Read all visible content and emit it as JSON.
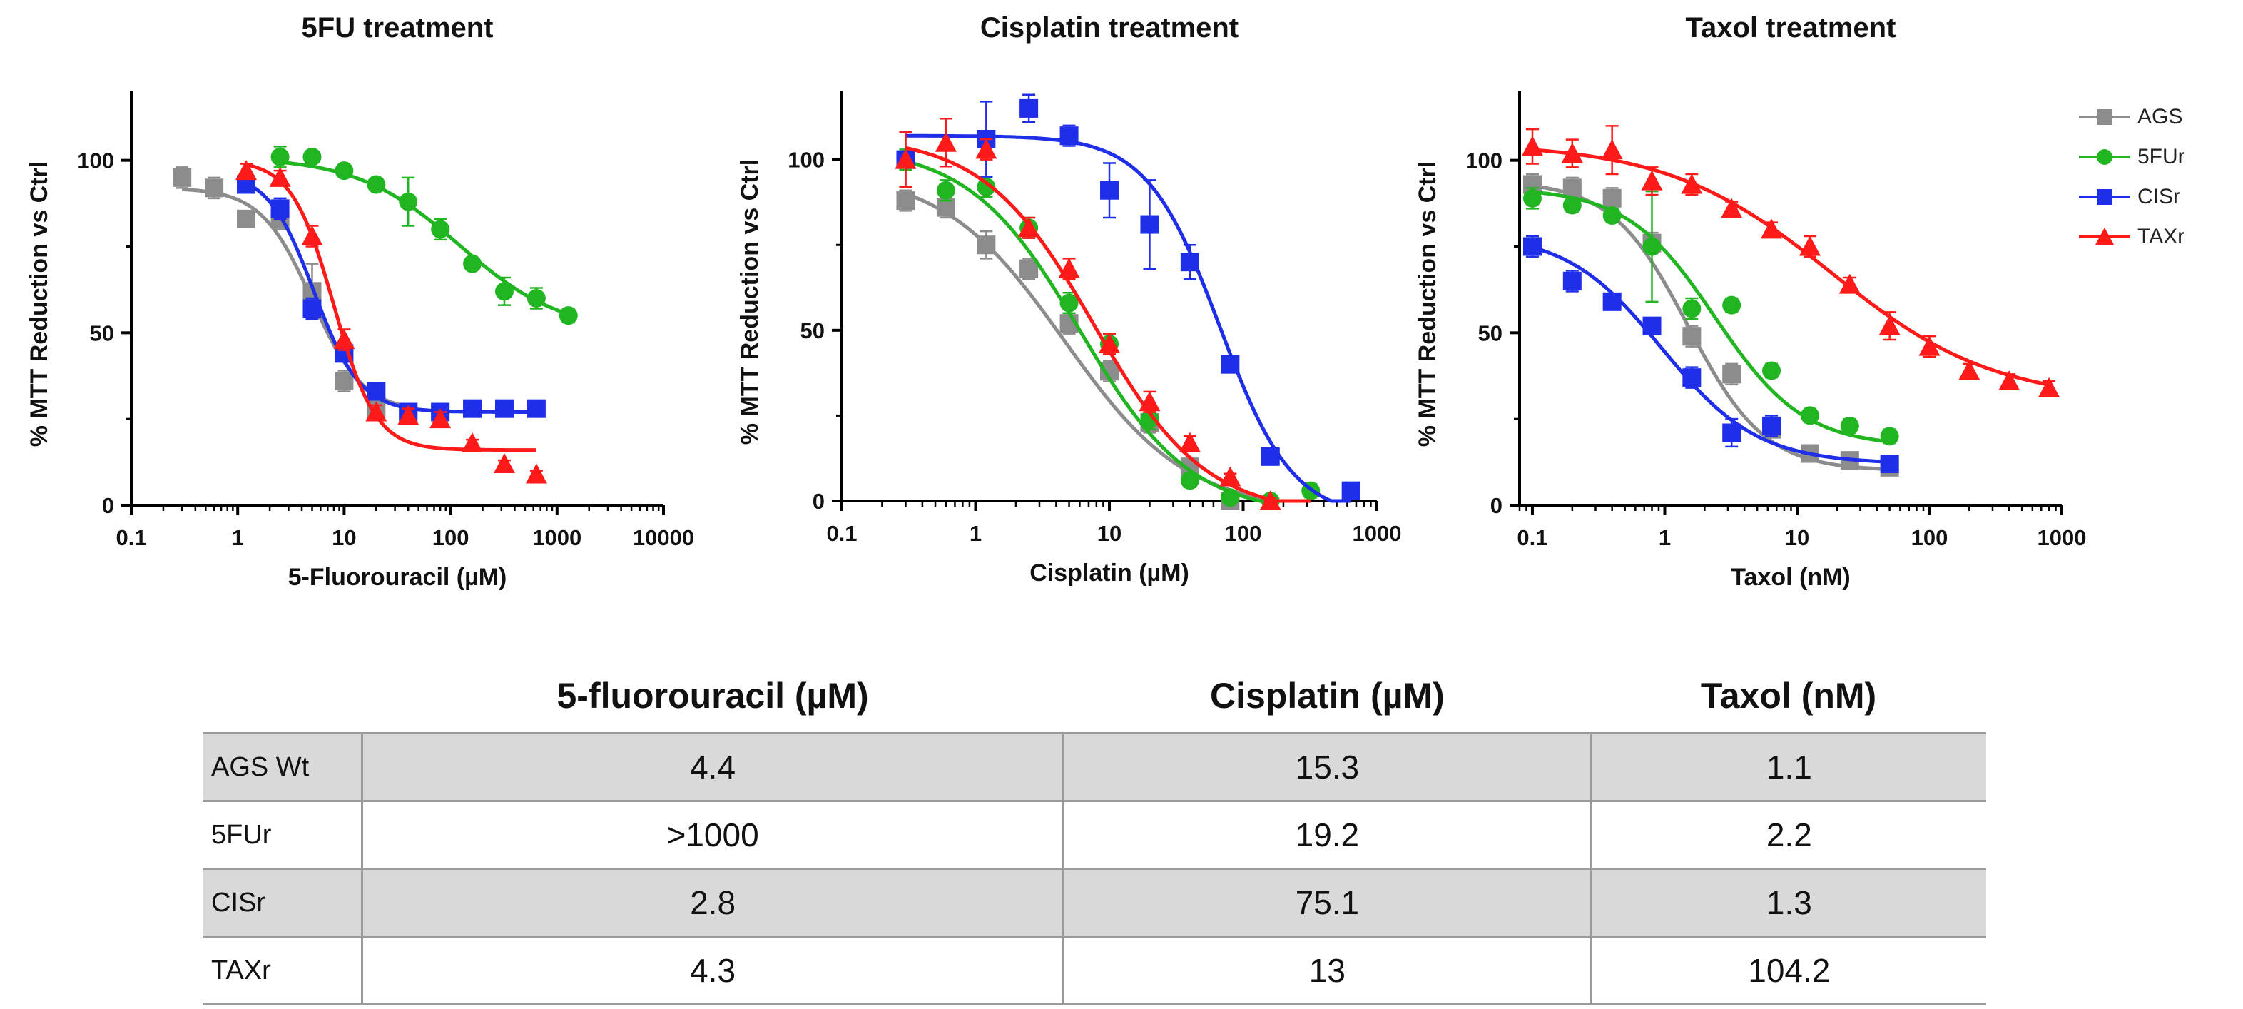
{
  "colors": {
    "AGS": "#8c8c8c",
    "5FUr": "#22b522",
    "CISr": "#1f2ee8",
    "TAXr": "#ff1a1a"
  },
  "chart_data": [
    {
      "type": "line",
      "title": "5FU treatment",
      "xlabel": "5-Fluorouracil (µM)",
      "ylabel": "% MTT Reduction vs Ctrl",
      "xscale": "log",
      "xlim": [
        0.1,
        10000
      ],
      "ylim": [
        0,
        120
      ],
      "xticks": [
        "0.1",
        "1",
        "10",
        "100",
        "1000",
        "10000"
      ],
      "yticks": [
        "0",
        "50",
        "100"
      ],
      "series": [
        {
          "name": "AGS",
          "marker": "square",
          "x": [
            0.3,
            0.6,
            1.2,
            2.5,
            5,
            10,
            20,
            40
          ],
          "y": [
            95,
            92,
            83,
            83,
            62,
            36,
            28,
            27
          ],
          "err": [
            3,
            3,
            2,
            3,
            8,
            3,
            2,
            2
          ],
          "fit": {
            "top": 92,
            "bottom": 27,
            "ec50": 5.0,
            "hill": 1.8,
            "xmin": 0.3,
            "xmax": 40
          }
        },
        {
          "name": "5FUr",
          "marker": "circle",
          "x": [
            2.5,
            5,
            10,
            20,
            40,
            80,
            160,
            320,
            640,
            1280
          ],
          "y": [
            101,
            101,
            97,
            93,
            88,
            80,
            70,
            62,
            60,
            55
          ],
          "err": [
            3,
            1,
            1,
            1,
            7,
            3,
            1,
            4,
            3,
            2
          ],
          "fit": {
            "top": 101,
            "bottom": 50,
            "ec50": 120,
            "hill": 0.9,
            "xmin": 2.5,
            "xmax": 1280
          }
        },
        {
          "name": "CISr",
          "marker": "square",
          "x": [
            1.2,
            2.5,
            5,
            10,
            20,
            40,
            80,
            160,
            320,
            640
          ],
          "y": [
            93,
            86,
            57,
            44,
            33,
            27,
            27,
            28,
            28,
            28
          ],
          "err": [
            2,
            3,
            3,
            2,
            2,
            2,
            2,
            2,
            1,
            1
          ],
          "fit": {
            "top": 97,
            "bottom": 27,
            "ec50": 5.2,
            "hill": 2.0,
            "xmin": 1.2,
            "xmax": 640
          }
        },
        {
          "name": "TAXr",
          "marker": "triangle",
          "x": [
            1.2,
            2.5,
            5,
            10,
            20,
            40,
            80,
            160,
            320,
            640
          ],
          "y": [
            97,
            95,
            78,
            48,
            27,
            26,
            25,
            18,
            12,
            9
          ],
          "err": [
            2,
            2,
            3,
            3,
            2,
            2,
            2,
            1,
            1,
            1
          ],
          "fit": {
            "top": 100,
            "bottom": 16,
            "ec50": 8.0,
            "hill": 2.2,
            "xmin": 1.2,
            "xmax": 640
          }
        }
      ]
    },
    {
      "type": "line",
      "title": "Cisplatin treatment",
      "xlabel": "Cisplatin (µM)",
      "ylabel": "% MTT Reduction vs Ctrl",
      "xscale": "log",
      "xlim": [
        0.1,
        1000
      ],
      "ylim": [
        0,
        120
      ],
      "xticks": [
        "0.1",
        "1",
        "10",
        "100",
        "1000"
      ],
      "yticks": [
        "0",
        "50",
        "100"
      ],
      "series": [
        {
          "name": "AGS",
          "marker": "square",
          "x": [
            0.3,
            0.6,
            1.2,
            2.5,
            5,
            10,
            20,
            40,
            80
          ],
          "y": [
            88,
            86,
            75,
            68,
            52,
            38,
            23,
            10,
            0
          ],
          "err": [
            3,
            3,
            4,
            3,
            3,
            3,
            3,
            2,
            1
          ],
          "fit": {
            "top": 97,
            "bottom": -3,
            "ec50": 4.6,
            "hill": 0.95,
            "xmin": 0.3,
            "xmax": 160
          }
        },
        {
          "name": "5FUr",
          "marker": "circle",
          "x": [
            0.3,
            0.6,
            1.2,
            2.5,
            5,
            10,
            20,
            40,
            80,
            160,
            320
          ],
          "y": [
            100,
            91,
            92,
            80,
            58,
            46,
            24,
            6,
            1,
            0,
            3
          ],
          "err": [
            3,
            3,
            3,
            3,
            3,
            3,
            3,
            2,
            1,
            1,
            2
          ],
          "fit": {
            "top": 104,
            "bottom": -4,
            "ec50": 6.0,
            "hill": 1.05,
            "xmin": 0.3,
            "xmax": 320
          }
        },
        {
          "name": "CISr",
          "marker": "square",
          "x": [
            0.3,
            1.2,
            2.5,
            5,
            10,
            20,
            40,
            80,
            160,
            640
          ],
          "y": [
            100,
            106,
            115,
            107,
            91,
            81,
            70,
            40,
            13,
            3
          ],
          "err": [
            8,
            11,
            4,
            3,
            8,
            13,
            5,
            2,
            2,
            1
          ],
          "fit": {
            "top": 107,
            "bottom": -5,
            "ec50": 67,
            "hill": 1.6,
            "xmin": 0.3,
            "xmax": 640
          }
        },
        {
          "name": "TAXr",
          "marker": "triangle",
          "x": [
            0.3,
            0.6,
            1.2,
            2.5,
            5,
            10,
            20,
            40,
            80,
            160
          ],
          "y": [
            100,
            105,
            103,
            80,
            68,
            46,
            29,
            17,
            7,
            0
          ],
          "err": [
            8,
            7,
            3,
            3,
            3,
            3,
            3,
            2,
            1,
            1
          ],
          "fit": {
            "top": 107,
            "bottom": -4,
            "ec50": 7.7,
            "hill": 1.05,
            "xmin": 0.3,
            "xmax": 320
          }
        }
      ]
    },
    {
      "type": "line",
      "title": "Taxol treatment",
      "xlabel": "Taxol (nM)",
      "ylabel": "% MTT Reduction vs Ctrl",
      "xscale": "log",
      "xlim": [
        0.08,
        1000
      ],
      "ylim": [
        0,
        120
      ],
      "xticks": [
        "0.1",
        "1",
        "10",
        "100",
        "1000"
      ],
      "yticks": [
        "0",
        "50",
        "100"
      ],
      "series": [
        {
          "name": "AGS",
          "marker": "square",
          "x": [
            0.1,
            0.2,
            0.4,
            0.8,
            1.6,
            3.2,
            6.4,
            12.5,
            25,
            50
          ],
          "y": [
            93,
            92,
            89,
            76,
            49,
            38,
            22,
            15,
            13,
            11
          ],
          "err": [
            3,
            3,
            3,
            3,
            3,
            3,
            2,
            2,
            2,
            2
          ],
          "fit": {
            "top": 94,
            "bottom": 10,
            "ec50": 1.5,
            "hill": 1.5,
            "xmin": 0.1,
            "xmax": 50
          }
        },
        {
          "name": "5FUr",
          "marker": "circle",
          "x": [
            0.1,
            0.2,
            0.4,
            0.8,
            1.6,
            3.2,
            6.4,
            12.5,
            25,
            50
          ],
          "y": [
            89,
            87,
            84,
            75,
            57,
            58,
            39,
            26,
            23,
            20
          ],
          "err": [
            3,
            2,
            2,
            16,
            3,
            2,
            2,
            2,
            2,
            2
          ],
          "fit": {
            "top": 92,
            "bottom": 17,
            "ec50": 2.4,
            "hill": 1.3,
            "xmin": 0.1,
            "xmax": 50
          }
        },
        {
          "name": "CISr",
          "marker": "square",
          "x": [
            0.1,
            0.2,
            0.4,
            0.8,
            1.6,
            3.2,
            6.4,
            50
          ],
          "y": [
            75,
            65,
            59,
            52,
            37,
            21,
            23,
            12
          ],
          "err": [
            3,
            3,
            2,
            2,
            3,
            4,
            3,
            2
          ],
          "fit": {
            "top": 79,
            "bottom": 12,
            "ec50": 0.95,
            "hill": 1.2,
            "xmin": 0.1,
            "xmax": 50
          }
        },
        {
          "name": "TAXr",
          "marker": "triangle",
          "x": [
            0.1,
            0.2,
            0.4,
            0.8,
            1.6,
            3.2,
            6.4,
            12.5,
            25,
            50,
            100,
            200,
            400,
            800
          ],
          "y": [
            104,
            102,
            103,
            94,
            93,
            86,
            80,
            75,
            64,
            52,
            46,
            39,
            36,
            34
          ],
          "err": [
            5,
            4,
            7,
            4,
            3,
            2,
            2,
            3,
            2,
            4,
            3,
            2,
            2,
            2
          ],
          "fit": {
            "top": 105,
            "bottom": 30,
            "ec50": 18,
            "hill": 0.7,
            "xmin": 0.1,
            "xmax": 800
          }
        }
      ]
    }
  ],
  "legend": [
    {
      "key": "AGS",
      "label": "AGS",
      "marker": "square"
    },
    {
      "key": "5FUr",
      "label": "5FUr",
      "marker": "circle"
    },
    {
      "key": "CISr",
      "label": "CISr",
      "marker": "square"
    },
    {
      "key": "TAXr",
      "label": "TAXr",
      "marker": "triangle"
    }
  ],
  "table": {
    "headers": [
      "",
      "5-fluorouracil (µM)",
      "Cisplatin (µM)",
      "Taxol (nM)"
    ],
    "rows": [
      {
        "label": "AGS Wt",
        "values": [
          "4.4",
          "15.3",
          "1.1"
        ]
      },
      {
        "label": "5FUr",
        "values": [
          ">1000",
          "19.2",
          "2.2"
        ]
      },
      {
        "label": "CISr",
        "values": [
          "2.8",
          "75.1",
          "1.3"
        ]
      },
      {
        "label": "TAXr",
        "values": [
          "4.3",
          "13",
          "104.2"
        ]
      }
    ]
  }
}
